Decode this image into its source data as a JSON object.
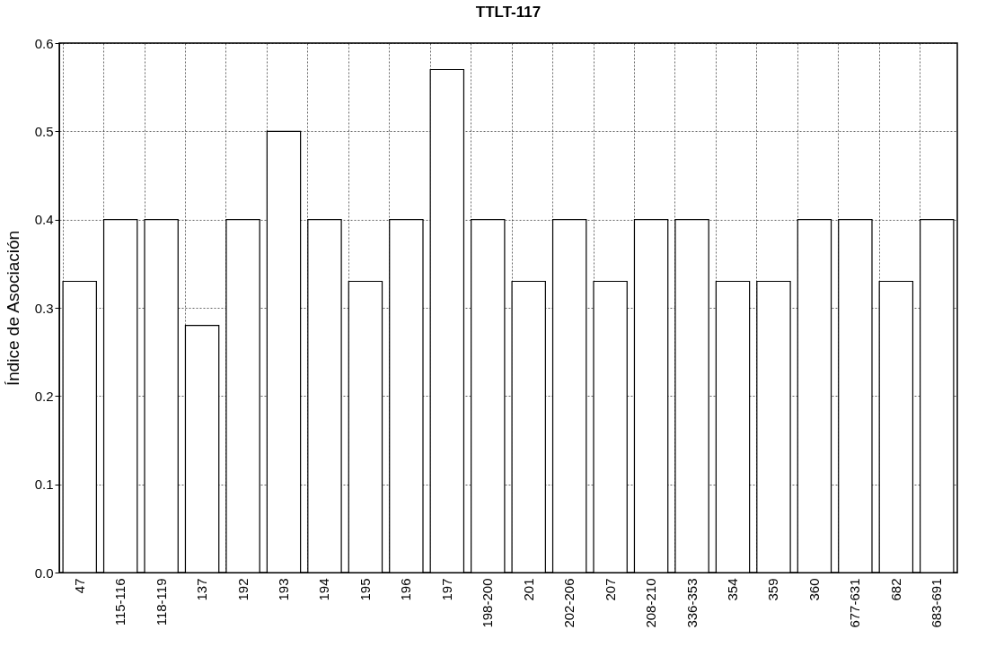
{
  "chart_data": {
    "type": "bar",
    "title": "TTLT-117",
    "ylabel": "Índice de Asociación",
    "categories": [
      "47",
      "115-116",
      "118-119",
      "137",
      "192",
      "193",
      "194",
      "195",
      "196",
      "197",
      "198-200",
      "201",
      "202-206",
      "207",
      "208-210",
      "336-353",
      "354",
      "359",
      "360",
      "677-631",
      "682",
      "683-691"
    ],
    "values": [
      0.33,
      0.4,
      0.4,
      0.28,
      0.4,
      0.5,
      0.4,
      0.33,
      0.4,
      0.57,
      0.4,
      0.33,
      0.4,
      0.33,
      0.4,
      0.4,
      0.33,
      0.33,
      0.4,
      0.4,
      0.33,
      0.4
    ],
    "color": "#ffffff",
    "ylim": [
      0,
      0.6
    ],
    "yticks": [
      {
        "value": 0,
        "label": "0.0"
      },
      0.1,
      0.2,
      0.3,
      0.4,
      0.5,
      0.6
    ],
    "grid": true
  }
}
